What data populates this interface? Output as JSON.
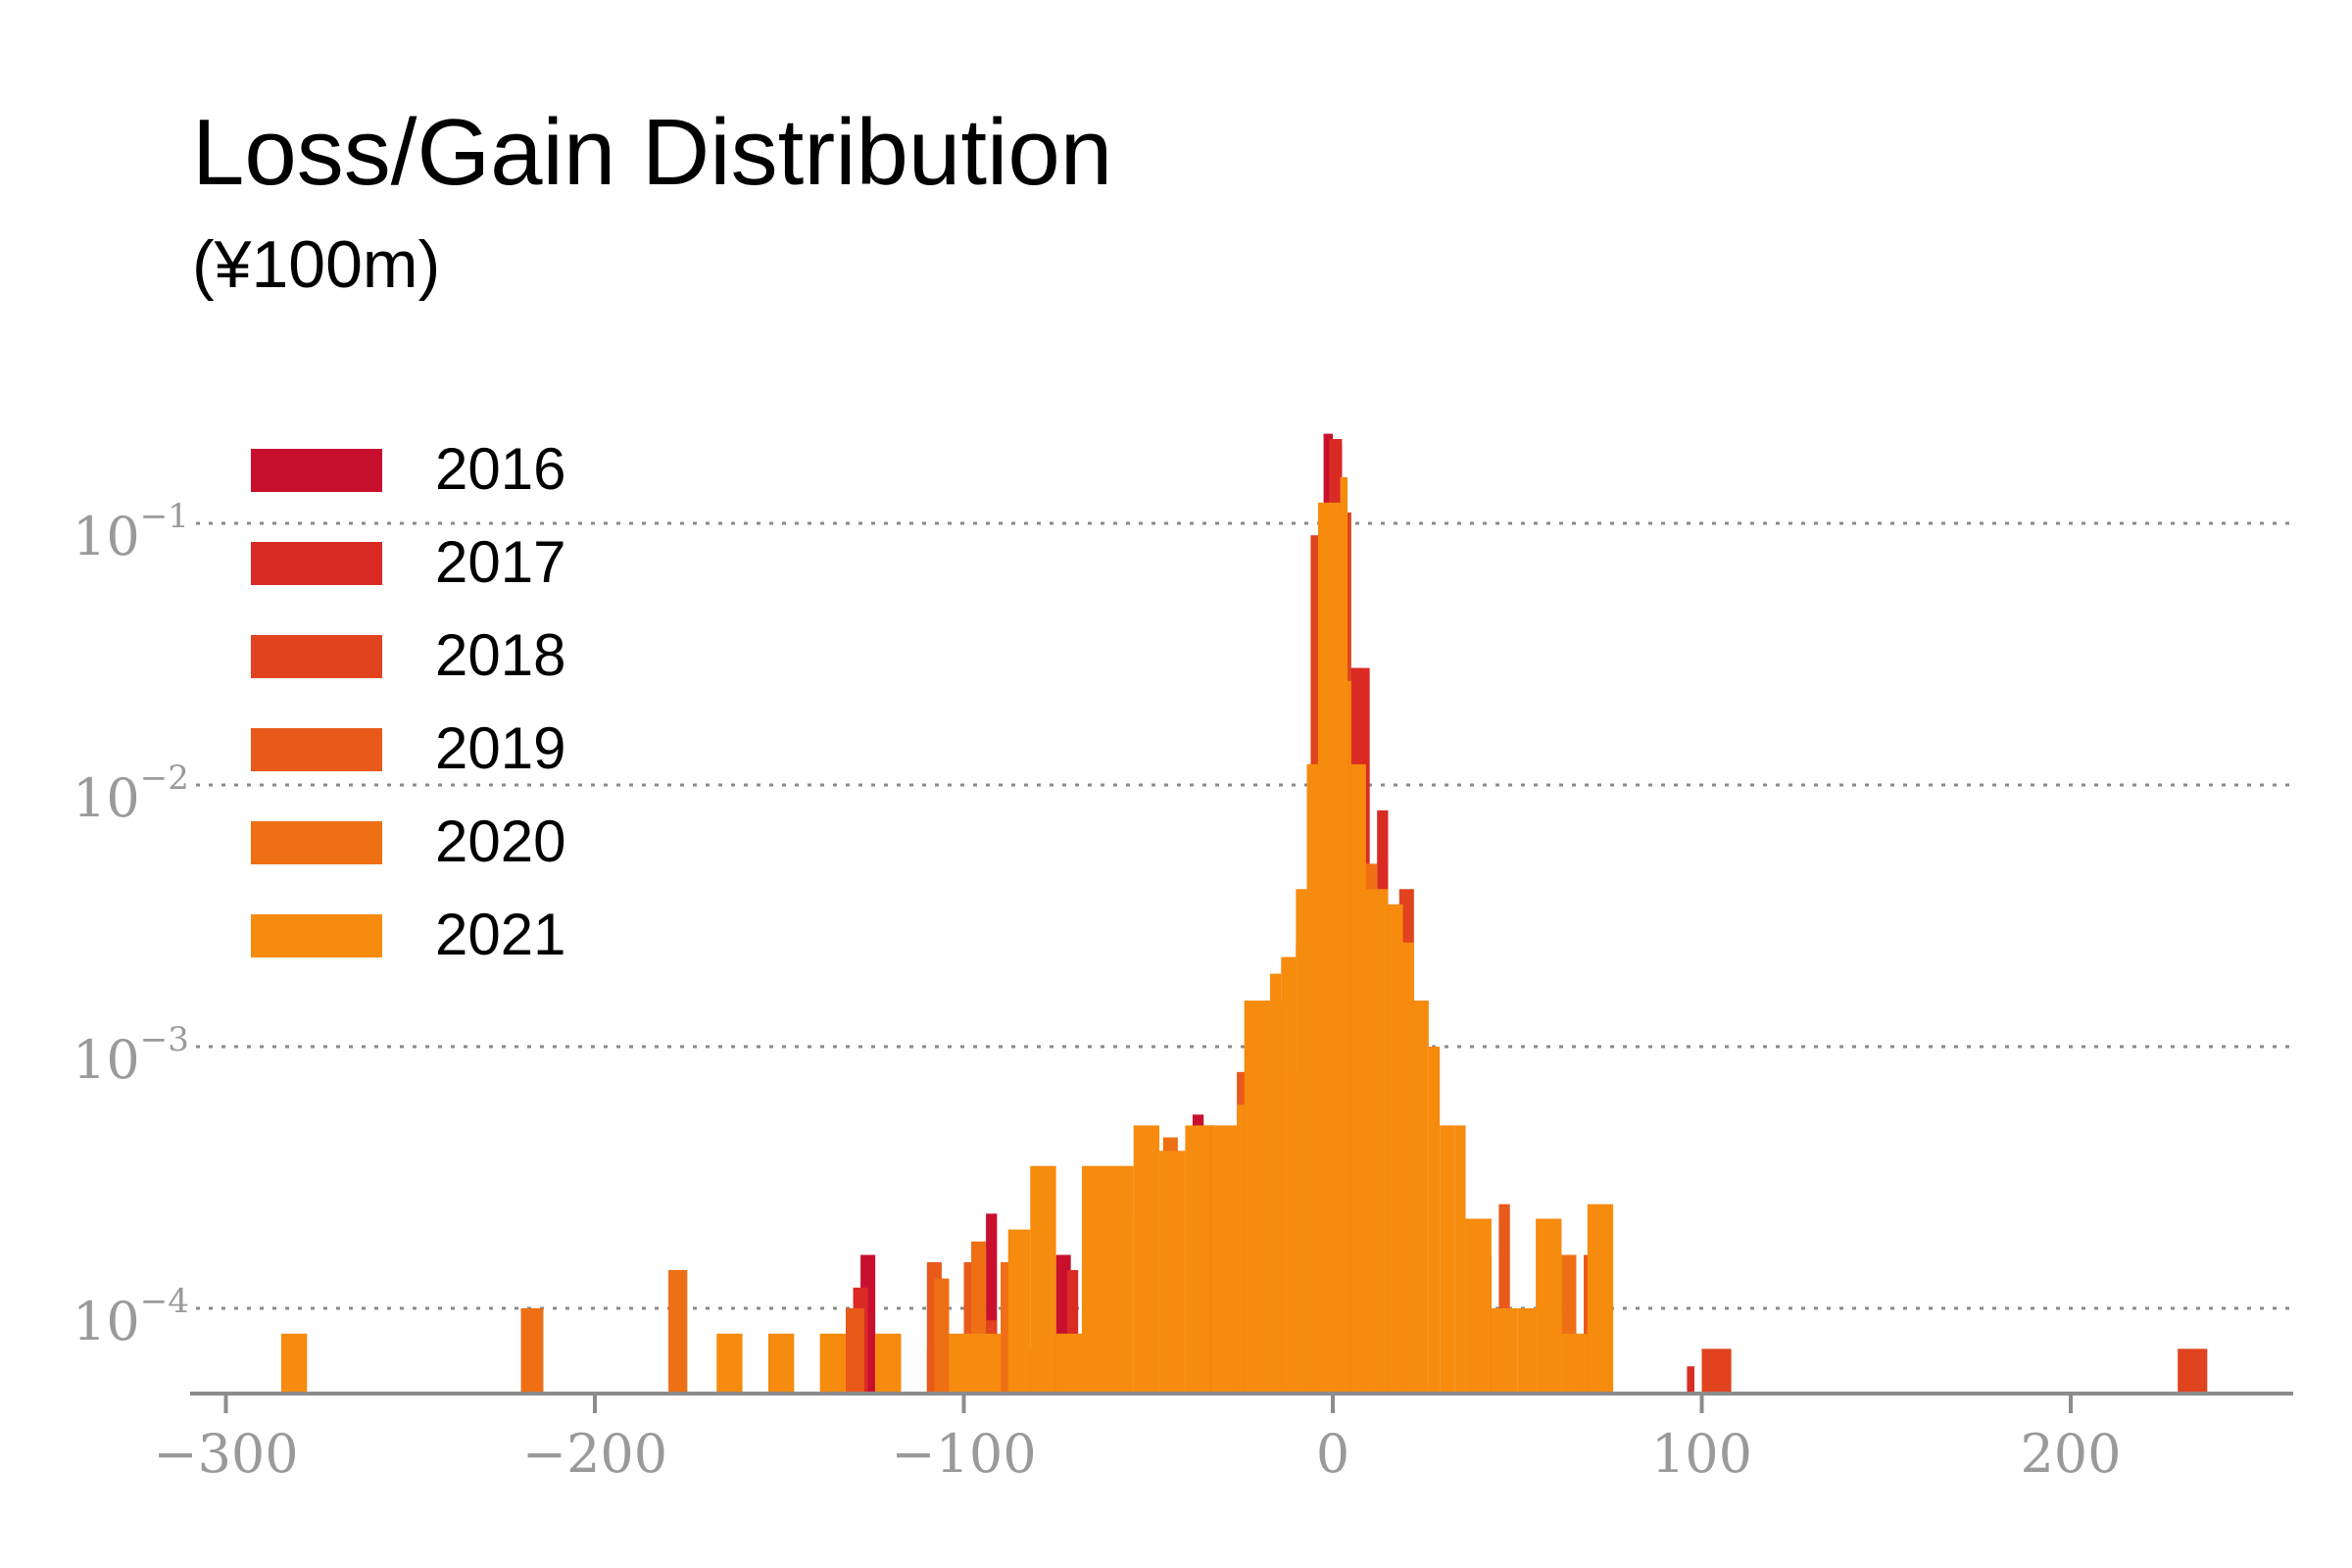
{
  "chart_data": {
    "type": "bar",
    "title": "Loss/Gain Distribution",
    "subtitle": "(¥100m)",
    "xlabel": "",
    "ylabel": "",
    "xlim": [
      -310,
      262
    ],
    "ylim": [
      4.5e-05,
      0.25
    ],
    "y_scale": "log",
    "grid": "y-major-dotted",
    "legend_position": "upper-left",
    "x_ticks": [
      {
        "value": -300,
        "label": "−300"
      },
      {
        "value": -200,
        "label": "−200"
      },
      {
        "value": -100,
        "label": "−100"
      },
      {
        "value": 0,
        "label": "0"
      },
      {
        "value": 100,
        "label": "100"
      },
      {
        "value": 200,
        "label": "200"
      }
    ],
    "y_ticks": [
      {
        "value": 0.1,
        "base": "10",
        "exp": "−1"
      },
      {
        "value": 0.01,
        "base": "10",
        "exp": "−2"
      },
      {
        "value": 0.001,
        "base": "10",
        "exp": "−3"
      },
      {
        "value": 0.0001,
        "base": "10",
        "exp": "−4"
      }
    ],
    "series": [
      {
        "name": "2016",
        "color": "#c8102e",
        "bins": [
          [
            -128,
            -124,
            0.00016
          ],
          [
            -94,
            -91,
            0.00023
          ],
          [
            -88,
            -84,
            0.00012
          ],
          [
            -75,
            -71,
            0.00016
          ],
          [
            -66,
            -63,
            0.0003
          ],
          [
            -38,
            -35,
            0.00055
          ],
          [
            -2.5,
            0,
            0.22
          ],
          [
            0,
            2.5,
            0.2
          ],
          [
            5,
            8,
            0.028
          ],
          [
            40,
            43,
            0.00016
          ]
        ]
      },
      {
        "name": "2017",
        "color": "#d92b24",
        "bins": [
          [
            -163,
            -161,
            7e-05
          ],
          [
            -130,
            -126,
            0.00012
          ],
          [
            -72,
            -69,
            0.00014
          ],
          [
            -52,
            -49,
            0.00035
          ],
          [
            -36,
            -32,
            0.0005
          ],
          [
            -10,
            -6,
            0.0008
          ],
          [
            -1,
            2.5,
            0.21
          ],
          [
            4,
            10,
            0.028
          ],
          [
            12,
            15,
            0.008
          ],
          [
            96,
            98,
            6e-05
          ]
        ]
      },
      {
        "name": "2018",
        "color": "#e0431e",
        "bins": [
          [
            -220,
            -214,
            0.0001
          ],
          [
            -180,
            -175,
            0.00014
          ],
          [
            -132,
            -127,
            0.0001
          ],
          [
            -110,
            -106,
            7e-05
          ],
          [
            -96,
            -91,
            9e-05
          ],
          [
            -86,
            -82,
            7e-05
          ],
          [
            -6,
            -2,
            0.09
          ],
          [
            2,
            5,
            0.11
          ],
          [
            18,
            22,
            0.004
          ],
          [
            100,
            108,
            7e-05
          ],
          [
            229,
            237,
            7e-05
          ]
        ]
      },
      {
        "name": "2019",
        "color": "#e9591a",
        "bins": [
          [
            -180,
            -175,
            0.00014
          ],
          [
            -132,
            -127,
            0.0001
          ],
          [
            -110,
            -106,
            0.00015
          ],
          [
            -100,
            -96,
            0.00015
          ],
          [
            -90,
            -86,
            0.00015
          ],
          [
            -84,
            -80,
            7e-05
          ],
          [
            -58,
            -54,
            0.00022
          ],
          [
            -52,
            -48,
            0.0003
          ],
          [
            -26,
            -22,
            0.0008
          ],
          [
            -10,
            -5,
            0.0025
          ],
          [
            45,
            48,
            0.00025
          ],
          [
            68,
            72,
            0.00016
          ]
        ]
      },
      {
        "name": "2020",
        "color": "#ef6f14",
        "bins": [
          [
            -220,
            -214,
            0.0001
          ],
          [
            -180,
            -175,
            0.00014
          ],
          [
            -108,
            -104,
            0.00013
          ],
          [
            -98,
            -94,
            0.00018
          ],
          [
            -90,
            -86,
            0.00015
          ],
          [
            -80,
            -77,
            0.00018
          ],
          [
            -52,
            -48,
            0.0003
          ],
          [
            -46,
            -42,
            0.00045
          ],
          [
            -16,
            -13,
            0.0015
          ],
          [
            -7,
            -4,
            0.012
          ],
          [
            8,
            12,
            0.005
          ],
          [
            56,
            60,
            0.0001
          ],
          [
            62,
            66,
            0.00016
          ]
        ]
      },
      {
        "name": "2021",
        "color": "#f68b0e",
        "bins": [
          [
            -285,
            -278,
            8e-05
          ],
          [
            -167,
            -160,
            8e-05
          ],
          [
            -153,
            -146,
            8e-05
          ],
          [
            -139,
            -132,
            8e-05
          ],
          [
            -124,
            -117,
            8e-05
          ],
          [
            -104,
            -90,
            8e-05
          ],
          [
            -88,
            -82,
            0.0002
          ],
          [
            -82,
            -75,
            0.00035
          ],
          [
            -75,
            -68,
            8e-05
          ],
          [
            -68,
            -54,
            0.00035
          ],
          [
            -54,
            -47,
            0.0005
          ],
          [
            -47,
            -40,
            0.0004
          ],
          [
            -40,
            -33,
            0.0005
          ],
          [
            -33,
            -26,
            0.0005
          ],
          [
            -26,
            -24,
            0.0006
          ],
          [
            -24,
            -17,
            0.0015
          ],
          [
            -17,
            -14,
            0.0019
          ],
          [
            -14,
            -10,
            0.0022
          ],
          [
            -10,
            -7,
            0.004
          ],
          [
            -7,
            -4,
            0.012
          ],
          [
            -4,
            2,
            0.12
          ],
          [
            2,
            4,
            0.15
          ],
          [
            4,
            5,
            0.025
          ],
          [
            5,
            9,
            0.012
          ],
          [
            9,
            12,
            0.004
          ],
          [
            12,
            15,
            0.004
          ],
          [
            15,
            19,
            0.0035
          ],
          [
            19,
            22,
            0.0025
          ],
          [
            22,
            26,
            0.0015
          ],
          [
            26,
            29,
            0.001
          ],
          [
            29,
            33,
            0.0005
          ],
          [
            33,
            36,
            0.0005
          ],
          [
            36,
            43,
            0.00022
          ],
          [
            43,
            50,
            0.0001
          ],
          [
            50,
            55,
            0.0001
          ],
          [
            55,
            62,
            0.00022
          ],
          [
            62,
            66,
            8e-05
          ],
          [
            66,
            69,
            8e-05
          ],
          [
            69,
            76,
            0.00025
          ]
        ]
      }
    ]
  }
}
